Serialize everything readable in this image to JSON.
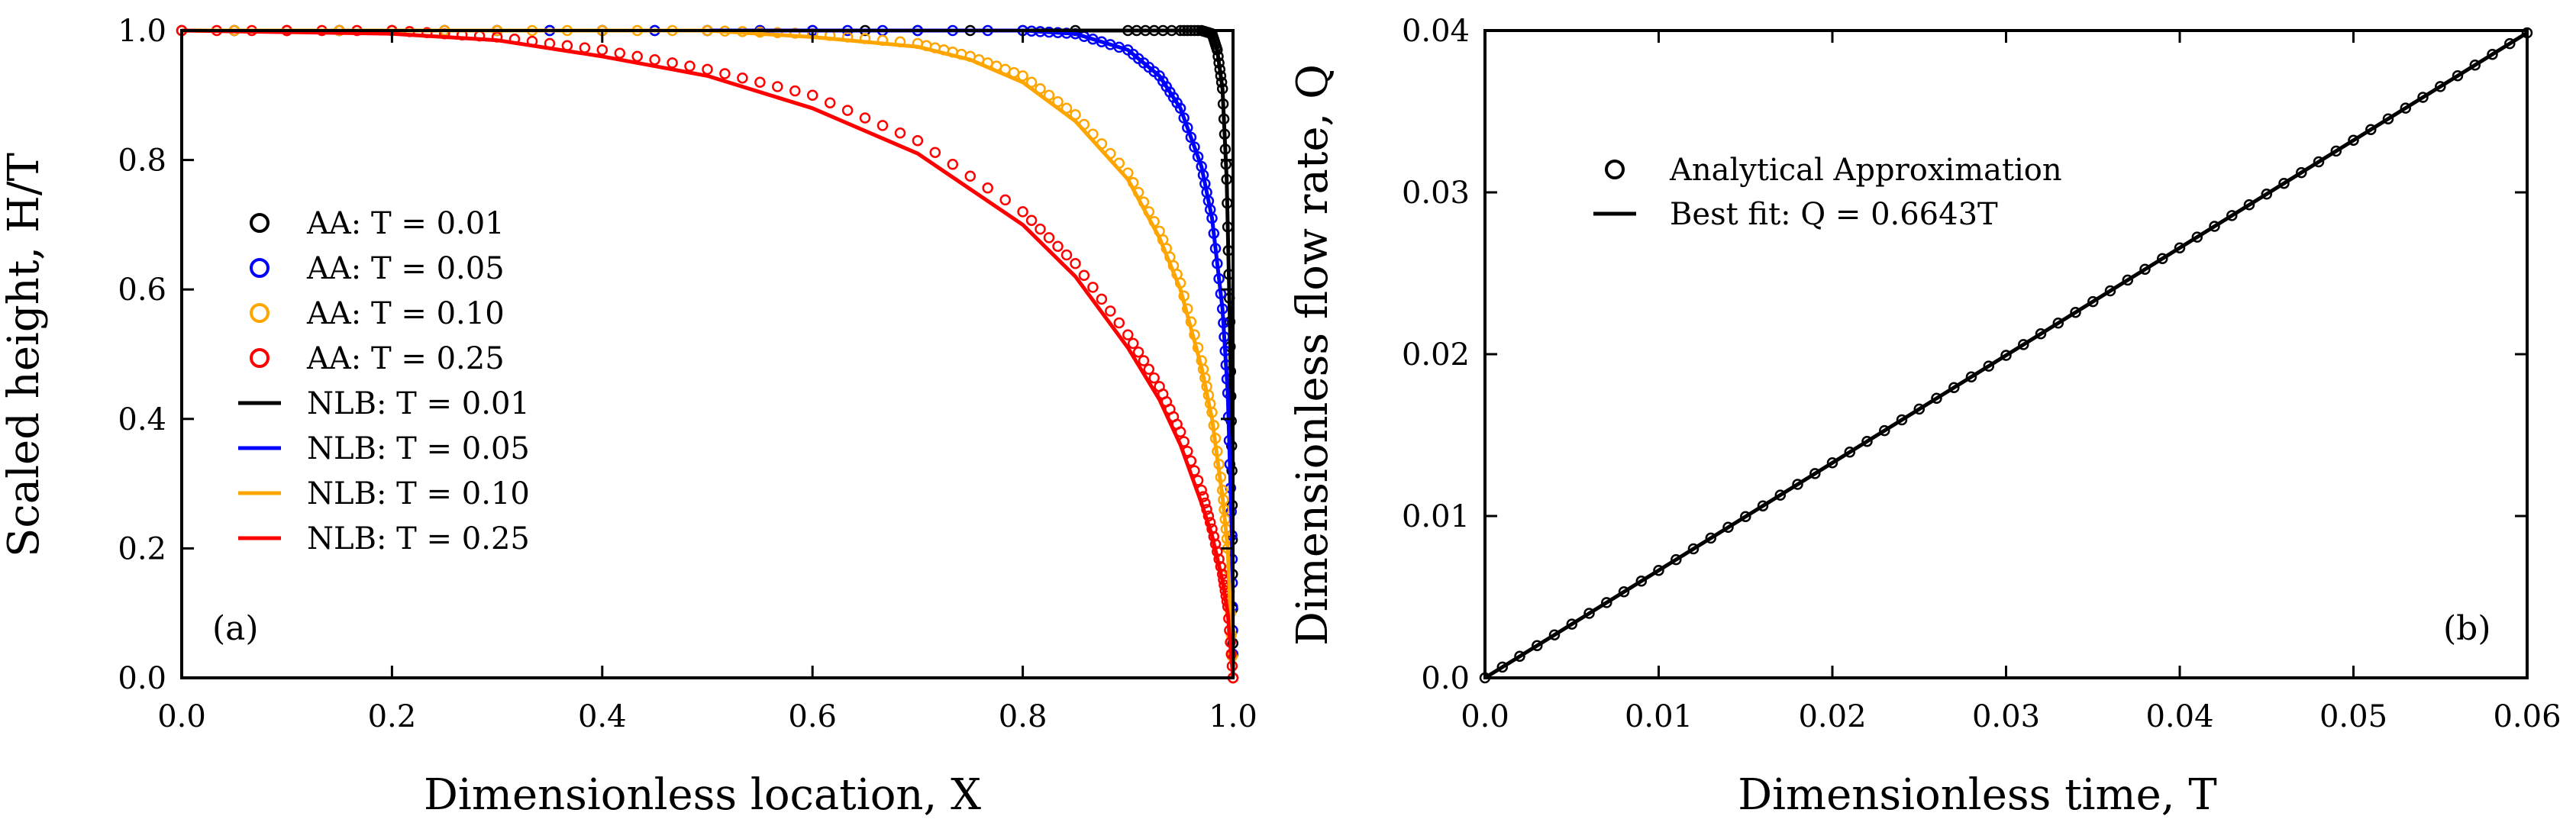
{
  "chart_data": [
    {
      "type": "line",
      "panel_label": "(a)",
      "xlabel": "Dimensionless location, X",
      "ylabel": "Scaled height, H/T",
      "xlim": [
        0.0,
        1.0
      ],
      "ylim": [
        0.0,
        1.0
      ],
      "xticks": [
        0.0,
        0.2,
        0.4,
        0.6,
        0.8,
        1.0
      ],
      "yticks": [
        0.0,
        0.2,
        0.4,
        0.6,
        0.8,
        1.0
      ],
      "xtick_labels": [
        "0.0",
        "0.2",
        "0.4",
        "0.6",
        "0.8",
        "1.0"
      ],
      "ytick_labels": [
        "0.0",
        "0.2",
        "0.4",
        "0.6",
        "0.8",
        "1.0"
      ],
      "grid": false,
      "legend_position": "center-left",
      "series": [
        {
          "name": "AA: T = 0.01",
          "kind": "markers",
          "color": "#000000",
          "T": 0.01,
          "x": [
            0.0,
            0.3,
            0.6,
            0.9,
            0.95,
            0.97,
            0.98,
            0.985,
            0.99,
            0.994,
            0.997,
            0.999,
            1.0
          ],
          "y": [
            1.0,
            1.0,
            1.0,
            1.0,
            1.0,
            1.0,
            0.995,
            0.97,
            0.91,
            0.77,
            0.55,
            0.32,
            0.0
          ]
        },
        {
          "name": "AA: T = 0.05",
          "kind": "markers",
          "color": "#0000ff",
          "T": 0.05,
          "x": [
            0.0,
            0.3,
            0.6,
            0.8,
            0.85,
            0.9,
            0.93,
            0.95,
            0.97,
            0.98,
            0.99,
            0.995,
            0.999,
            1.0
          ],
          "y": [
            1.0,
            1.0,
            1.0,
            1.0,
            0.995,
            0.97,
            0.93,
            0.88,
            0.79,
            0.71,
            0.57,
            0.44,
            0.22,
            0.0
          ]
        },
        {
          "name": "AA: T = 0.10",
          "kind": "markers",
          "color": "#ffa500",
          "T": 0.1,
          "x": [
            0.0,
            0.3,
            0.5,
            0.6,
            0.7,
            0.75,
            0.8,
            0.85,
            0.9,
            0.93,
            0.95,
            0.97,
            0.98,
            0.99,
            0.995,
            1.0
          ],
          "y": [
            1.0,
            1.0,
            1.0,
            0.995,
            0.98,
            0.96,
            0.93,
            0.87,
            0.78,
            0.69,
            0.61,
            0.49,
            0.41,
            0.29,
            0.2,
            0.0
          ]
        },
        {
          "name": "AA: T = 0.25",
          "kind": "markers",
          "color": "#ff0000",
          "T": 0.25,
          "x": [
            0.0,
            0.2,
            0.3,
            0.4,
            0.5,
            0.6,
            0.7,
            0.8,
            0.85,
            0.9,
            0.93,
            0.95,
            0.97,
            0.98,
            0.99,
            0.995,
            1.0
          ],
          "y": [
            1.0,
            1.0,
            0.99,
            0.97,
            0.94,
            0.9,
            0.83,
            0.72,
            0.64,
            0.53,
            0.45,
            0.38,
            0.29,
            0.23,
            0.16,
            0.11,
            0.0
          ]
        },
        {
          "name": "NLB: T = 0.01",
          "kind": "line",
          "color": "#000000",
          "T": 0.01,
          "x": [
            0.0,
            0.3,
            0.6,
            0.9,
            0.95,
            0.97,
            0.98,
            0.985,
            0.99,
            0.994,
            0.997,
            0.999,
            1.0
          ],
          "y": [
            1.0,
            1.0,
            1.0,
            1.0,
            1.0,
            1.0,
            0.995,
            0.97,
            0.91,
            0.77,
            0.55,
            0.32,
            0.0
          ]
        },
        {
          "name": "NLB: T = 0.05",
          "kind": "line",
          "color": "#0000ff",
          "T": 0.05,
          "x": [
            0.0,
            0.3,
            0.6,
            0.8,
            0.85,
            0.9,
            0.93,
            0.95,
            0.97,
            0.98,
            0.99,
            0.995,
            0.999,
            1.0
          ],
          "y": [
            1.0,
            1.0,
            1.0,
            1.0,
            0.995,
            0.97,
            0.93,
            0.88,
            0.79,
            0.71,
            0.57,
            0.44,
            0.22,
            0.0
          ]
        },
        {
          "name": "NLB: T = 0.10",
          "kind": "line",
          "color": "#ffa500",
          "T": 0.1,
          "x": [
            0.0,
            0.3,
            0.5,
            0.6,
            0.7,
            0.75,
            0.8,
            0.85,
            0.9,
            0.93,
            0.95,
            0.97,
            0.98,
            0.99,
            0.995,
            1.0
          ],
          "y": [
            1.0,
            1.0,
            1.0,
            0.99,
            0.975,
            0.955,
            0.92,
            0.86,
            0.77,
            0.68,
            0.6,
            0.48,
            0.4,
            0.28,
            0.2,
            0.0
          ]
        },
        {
          "name": "NLB: T = 0.25",
          "kind": "line",
          "color": "#ff0000",
          "T": 0.25,
          "x": [
            0.0,
            0.2,
            0.3,
            0.4,
            0.5,
            0.6,
            0.7,
            0.8,
            0.85,
            0.9,
            0.93,
            0.95,
            0.97,
            0.98,
            0.99,
            0.995,
            1.0
          ],
          "y": [
            1.0,
            0.995,
            0.985,
            0.96,
            0.93,
            0.88,
            0.81,
            0.7,
            0.62,
            0.51,
            0.43,
            0.36,
            0.27,
            0.22,
            0.15,
            0.1,
            0.0
          ]
        }
      ]
    },
    {
      "type": "line",
      "panel_label": "(b)",
      "xlabel": "Dimensionless time, T",
      "ylabel": "Dimensionless flow rate, Q",
      "xlim": [
        0.0,
        0.06
      ],
      "ylim": [
        0.0,
        0.04
      ],
      "xticks": [
        0.0,
        0.01,
        0.02,
        0.03,
        0.04,
        0.05,
        0.06
      ],
      "yticks": [
        0.0,
        0.01,
        0.02,
        0.03,
        0.04
      ],
      "xtick_labels": [
        "0.0",
        "0.01",
        "0.02",
        "0.03",
        "0.04",
        "0.05",
        "0.06"
      ],
      "ytick_labels": [
        "0.0",
        "0.01",
        "0.02",
        "0.03",
        "0.04"
      ],
      "grid": false,
      "legend_position": "upper-left",
      "series": [
        {
          "name": "Analytical Approximation",
          "kind": "markers",
          "color": "#000000",
          "x_start": 0.0,
          "x_end": 0.06,
          "count": 61,
          "slope": 0.6643
        },
        {
          "name": "Best fit: Q = 0.6643T",
          "kind": "line",
          "color": "#000000",
          "slope": 0.6643,
          "x": [
            0.0,
            0.06
          ],
          "y": [
            0.0,
            0.03986
          ]
        }
      ]
    }
  ]
}
